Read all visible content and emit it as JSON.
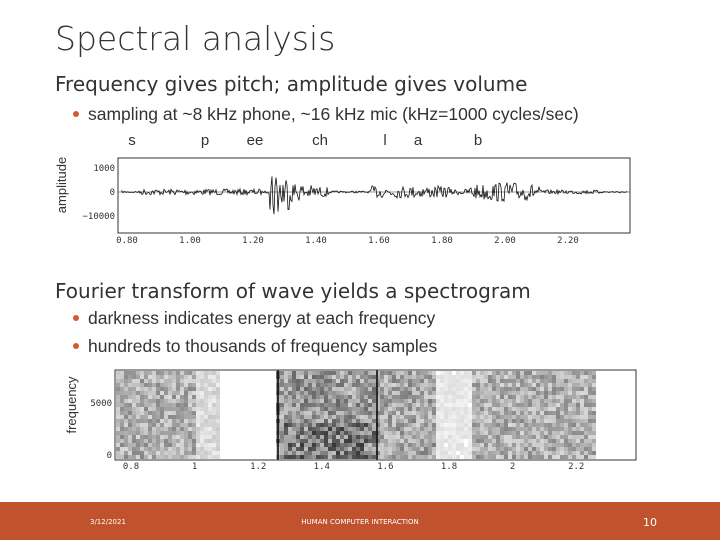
{
  "title": "Spectral analysis",
  "section1": {
    "heading": "Frequency gives pitch; amplitude gives volume",
    "bullets": [
      "sampling at ~8 kHz phone, ~16 kHz mic (kHz=1000 cycles/sec)"
    ]
  },
  "waveform": {
    "phonemes": [
      "s",
      "p",
      "ee",
      "ch",
      "l",
      "a",
      "b"
    ],
    "ylabel": "amplitude",
    "yticks": [
      "1000",
      "0",
      "−10000"
    ],
    "xticks": [
      "0.80",
      "1.00",
      "1.20",
      "1.40",
      "1.60",
      "1.80",
      "2.00",
      "2.20"
    ]
  },
  "section2": {
    "heading": "Fourier transform of wave yields a spectrogram",
    "bullets": [
      "darkness indicates energy at each frequency",
      "hundreds to thousands of frequency samples"
    ]
  },
  "spectrogram": {
    "ylabel": "frequency",
    "yticks": [
      "5000",
      "0"
    ],
    "xticks": [
      "0.8",
      "1",
      "1.2",
      "1.4",
      "1.6",
      "1.8",
      "2",
      "2.2"
    ]
  },
  "footer": {
    "date": "3/12/2021",
    "center": "HUMAN COMPUTER INTERACTION",
    "page": "10"
  }
}
